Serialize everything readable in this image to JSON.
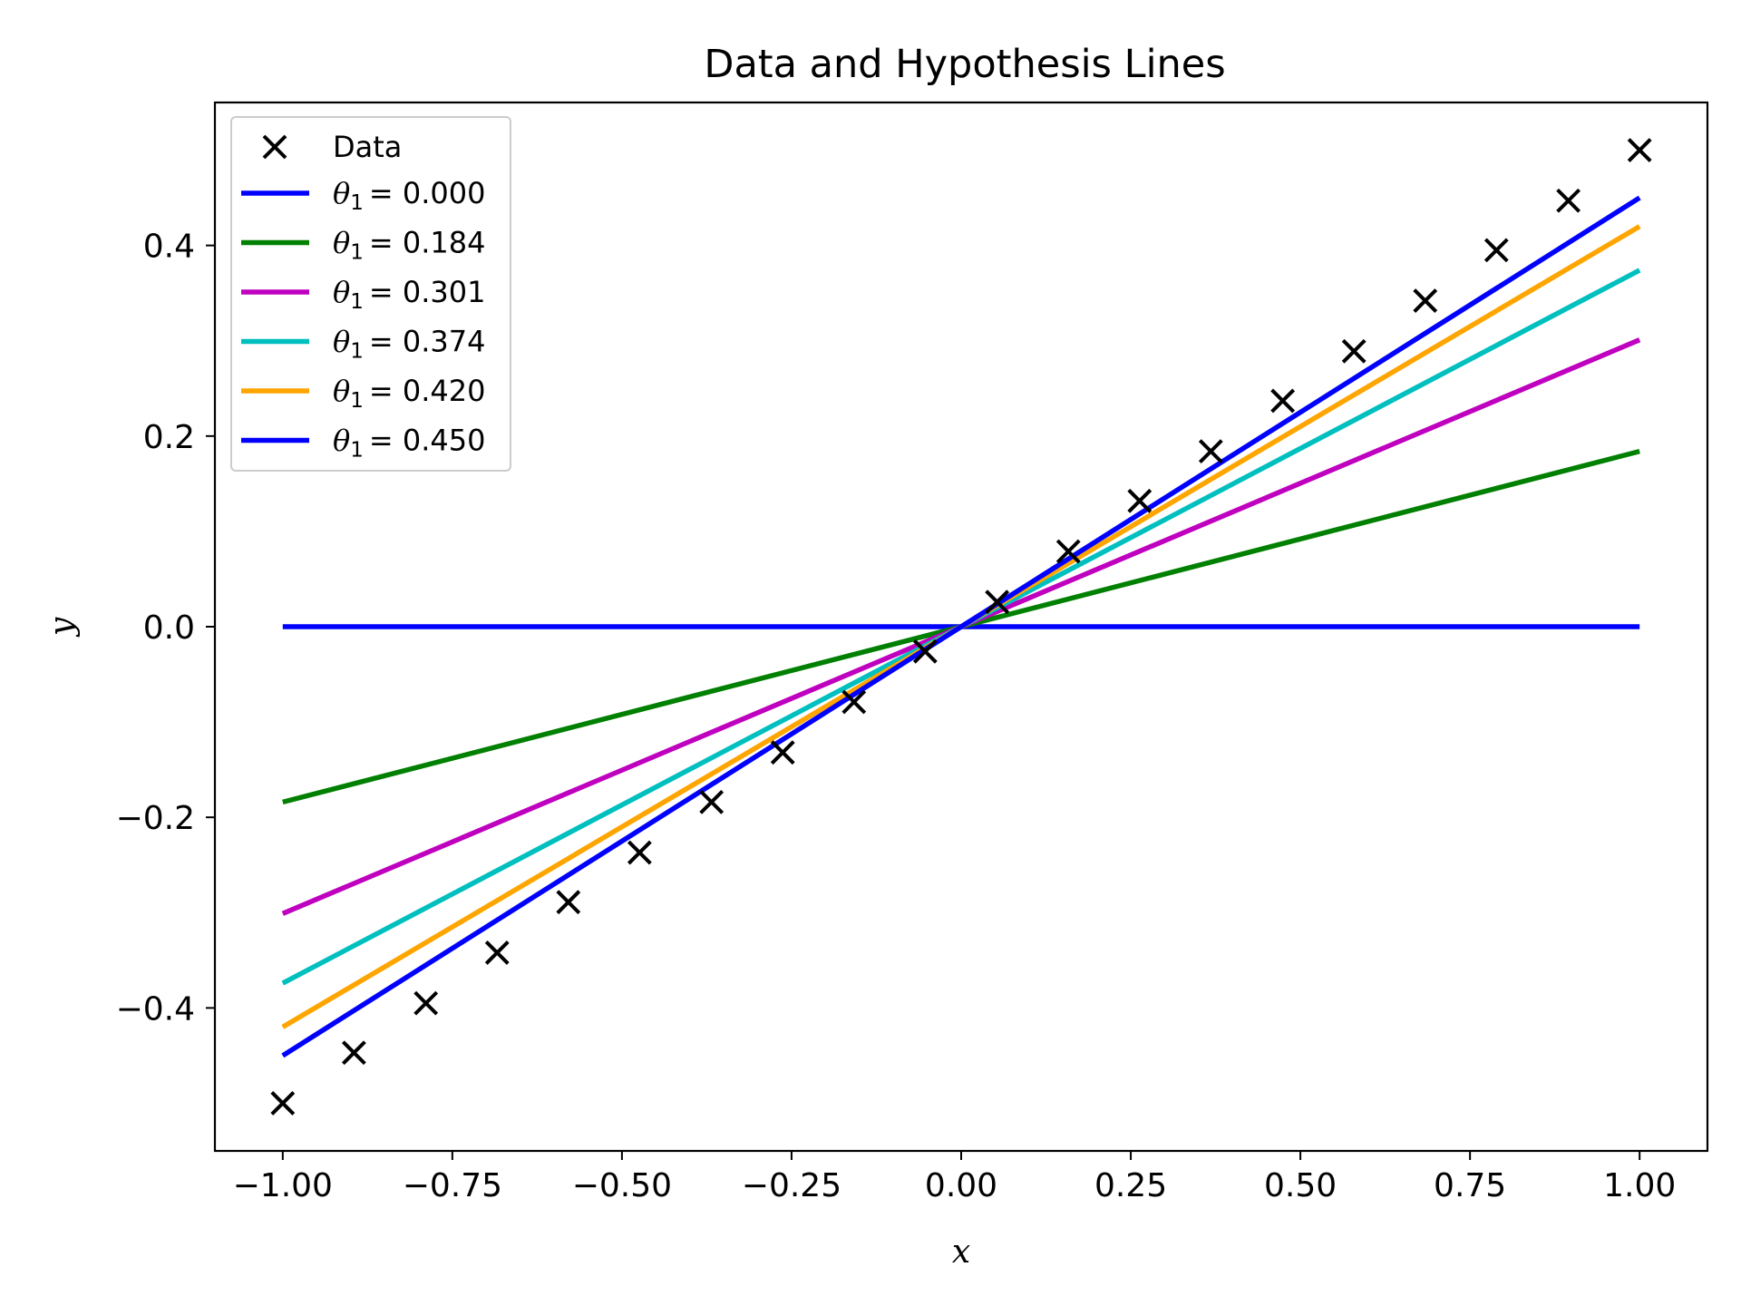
{
  "chart_data": {
    "type": "line",
    "title": "Data and Hypothesis Lines",
    "xlabel": "x",
    "ylabel": "y",
    "xlim": [
      -1.1,
      1.1
    ],
    "ylim": [
      -0.55,
      0.55
    ],
    "xticks": [
      -1.0,
      -0.75,
      -0.5,
      -0.25,
      0.0,
      0.25,
      0.5,
      0.75,
      1.0
    ],
    "xtick_labels": [
      "−1.00",
      "−0.75",
      "−0.50",
      "−0.25",
      "0.00",
      "0.25",
      "0.50",
      "0.75",
      "1.00"
    ],
    "yticks": [
      -0.4,
      -0.2,
      0.0,
      0.2,
      0.4
    ],
    "ytick_labels": [
      "−0.4",
      "−0.2",
      "0.0",
      "0.2",
      "0.4"
    ],
    "grid": false,
    "legend_position": "top-left",
    "scatter": {
      "name": "Data",
      "marker": "x",
      "color": "#000000",
      "x": [
        -1.0,
        -0.895,
        -0.789,
        -0.684,
        -0.579,
        -0.474,
        -0.368,
        -0.263,
        -0.158,
        -0.053,
        0.053,
        0.158,
        0.263,
        0.368,
        0.474,
        0.579,
        0.684,
        0.789,
        0.895,
        1.0
      ],
      "y": [
        -0.5,
        -0.447,
        -0.395,
        -0.342,
        -0.289,
        -0.237,
        -0.184,
        -0.132,
        -0.079,
        -0.026,
        0.026,
        0.079,
        0.132,
        0.184,
        0.237,
        0.289,
        0.342,
        0.395,
        0.447,
        0.5
      ]
    },
    "series": [
      {
        "name": "θ₁ = 0.000",
        "slope": 0.0,
        "color": "#0000ff",
        "x": [
          -1.0,
          1.0
        ],
        "y": [
          0.0,
          0.0
        ]
      },
      {
        "name": "θ₁ = 0.184",
        "slope": 0.184,
        "color": "#008000",
        "x": [
          -1.0,
          1.0
        ],
        "y": [
          -0.184,
          0.184
        ]
      },
      {
        "name": "θ₁ = 0.301",
        "slope": 0.301,
        "color": "#bf00bf",
        "x": [
          -1.0,
          1.0
        ],
        "y": [
          -0.301,
          0.301
        ]
      },
      {
        "name": "θ₁ = 0.374",
        "slope": 0.374,
        "color": "#00bfbf",
        "x": [
          -1.0,
          1.0
        ],
        "y": [
          -0.374,
          0.374
        ]
      },
      {
        "name": "θ₁ = 0.420",
        "slope": 0.42,
        "color": "#ffa500",
        "x": [
          -1.0,
          1.0
        ],
        "y": [
          -0.42,
          0.42
        ]
      },
      {
        "name": "θ₁ = 0.450",
        "slope": 0.45,
        "color": "#0000ff",
        "x": [
          -1.0,
          1.0
        ],
        "y": [
          -0.45,
          0.45
        ]
      }
    ],
    "legend_labels": [
      {
        "prefix": "θ",
        "sub": "1",
        "value": "= 0.000"
      },
      {
        "prefix": "θ",
        "sub": "1",
        "value": "= 0.184"
      },
      {
        "prefix": "θ",
        "sub": "1",
        "value": "= 0.301"
      },
      {
        "prefix": "θ",
        "sub": "1",
        "value": "= 0.374"
      },
      {
        "prefix": "θ",
        "sub": "1",
        "value": "= 0.420"
      },
      {
        "prefix": "θ",
        "sub": "1",
        "value": "= 0.450"
      }
    ]
  }
}
